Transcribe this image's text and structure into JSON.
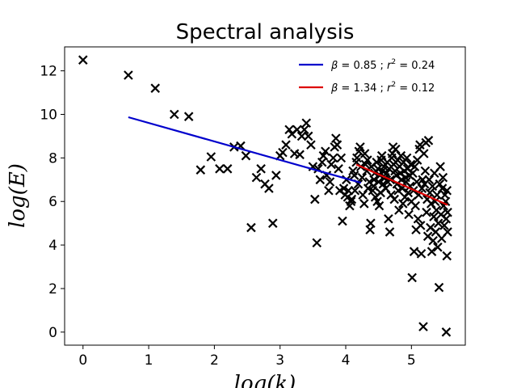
{
  "chart_data": {
    "type": "scatter",
    "title": "Spectral analysis",
    "xlabel": "log(k)",
    "ylabel": "log(E)",
    "xlim": [
      -0.28,
      5.82
    ],
    "ylim": [
      -0.6,
      13.1
    ],
    "xticks": [
      0,
      1,
      2,
      3,
      4,
      5
    ],
    "yticks": [
      0,
      2,
      4,
      6,
      8,
      10,
      12
    ],
    "grid": false,
    "legend_position": "top-right",
    "marker": "x",
    "points": [
      [
        0.0,
        12.5
      ],
      [
        0.69,
        11.8
      ],
      [
        1.1,
        11.2
      ],
      [
        1.39,
        10.0
      ],
      [
        1.61,
        9.9
      ],
      [
        1.79,
        7.45
      ],
      [
        1.95,
        8.05
      ],
      [
        2.08,
        7.5
      ],
      [
        2.2,
        7.5
      ],
      [
        2.3,
        8.5
      ],
      [
        2.4,
        8.55
      ],
      [
        2.48,
        8.1
      ],
      [
        2.56,
        4.8
      ],
      [
        2.64,
        7.1
      ],
      [
        2.71,
        7.5
      ],
      [
        2.77,
        6.8
      ],
      [
        2.83,
        6.6
      ],
      [
        2.89,
        5.0
      ],
      [
        2.94,
        7.2
      ],
      [
        3.0,
        8.1
      ],
      [
        3.04,
        8.25
      ],
      [
        3.09,
        8.6
      ],
      [
        3.14,
        9.3
      ],
      [
        3.18,
        9.1
      ],
      [
        3.22,
        8.2
      ],
      [
        3.26,
        9.3
      ],
      [
        3.3,
        8.15
      ],
      [
        3.33,
        9.0
      ],
      [
        3.37,
        9.3
      ],
      [
        3.4,
        9.6
      ],
      [
        3.43,
        9.0
      ],
      [
        3.47,
        8.6
      ],
      [
        3.5,
        7.6
      ],
      [
        3.53,
        6.1
      ],
      [
        3.56,
        4.1
      ],
      [
        3.58,
        7.5
      ],
      [
        3.61,
        7.0
      ],
      [
        3.64,
        7.8
      ],
      [
        3.66,
        8.1
      ],
      [
        3.69,
        8.3
      ],
      [
        3.71,
        7.2
      ],
      [
        3.74,
        6.5
      ],
      [
        3.76,
        6.9
      ],
      [
        3.78,
        7.7
      ],
      [
        3.81,
        8.0
      ],
      [
        3.83,
        8.5
      ],
      [
        3.85,
        8.9
      ],
      [
        3.87,
        8.6
      ],
      [
        3.89,
        7.5
      ],
      [
        3.91,
        6.5
      ],
      [
        3.93,
        8.0
      ],
      [
        3.95,
        5.1
      ],
      [
        3.97,
        6.6
      ],
      [
        3.99,
        6.3
      ],
      [
        4.01,
        7.0
      ],
      [
        4.03,
        6.2
      ],
      [
        4.04,
        6.5
      ],
      [
        4.06,
        5.8
      ],
      [
        4.08,
        6.0
      ],
      [
        4.09,
        6.1
      ],
      [
        4.11,
        7.4
      ],
      [
        4.13,
        7.2
      ],
      [
        4.14,
        6.5
      ],
      [
        4.16,
        7.8
      ],
      [
        4.17,
        8.0
      ],
      [
        4.19,
        6.8
      ],
      [
        4.2,
        8.3
      ],
      [
        4.22,
        8.5
      ],
      [
        4.23,
        7.6
      ],
      [
        4.25,
        7.1
      ],
      [
        4.26,
        6.3
      ],
      [
        4.28,
        5.9
      ],
      [
        4.29,
        8.2
      ],
      [
        4.3,
        7.7
      ],
      [
        4.32,
        7.4
      ],
      [
        4.33,
        7.9
      ],
      [
        4.34,
        6.6
      ],
      [
        4.36,
        6.9
      ],
      [
        4.37,
        4.7
      ],
      [
        4.38,
        5.0
      ],
      [
        4.39,
        7.6
      ],
      [
        4.41,
        6.5
      ],
      [
        4.42,
        6.7
      ],
      [
        4.43,
        7.0
      ],
      [
        4.44,
        7.3
      ],
      [
        4.45,
        6.2
      ],
      [
        4.47,
        7.8
      ],
      [
        4.48,
        6.0
      ],
      [
        4.49,
        7.5
      ],
      [
        4.5,
        6.9
      ],
      [
        4.51,
        5.8
      ],
      [
        4.52,
        7.2
      ],
      [
        4.53,
        6.4
      ],
      [
        4.54,
        7.9
      ],
      [
        4.55,
        8.1
      ],
      [
        4.56,
        7.4
      ],
      [
        4.57,
        6.8
      ],
      [
        4.58,
        7.6
      ],
      [
        4.6,
        7.1
      ],
      [
        4.61,
        6.6
      ],
      [
        4.62,
        7.3
      ],
      [
        4.63,
        7.8
      ],
      [
        4.64,
        6.9
      ],
      [
        4.65,
        5.2
      ],
      [
        4.66,
        7.5
      ],
      [
        4.67,
        4.6
      ],
      [
        4.68,
        7.0
      ],
      [
        4.69,
        6.3
      ],
      [
        4.7,
        8.0
      ],
      [
        4.71,
        8.2
      ],
      [
        4.72,
        8.5
      ],
      [
        4.73,
        7.7
      ],
      [
        4.74,
        6.1
      ],
      [
        4.75,
        7.4
      ],
      [
        4.76,
        8.4
      ],
      [
        4.77,
        7.2
      ],
      [
        4.78,
        6.8
      ],
      [
        4.79,
        7.9
      ],
      [
        4.8,
        6.5
      ],
      [
        4.81,
        5.6
      ],
      [
        4.82,
        7.6
      ],
      [
        4.83,
        7.3
      ],
      [
        4.84,
        8.1
      ],
      [
        4.85,
        7.0
      ],
      [
        4.86,
        6.6
      ],
      [
        4.87,
        5.9
      ],
      [
        4.88,
        7.8
      ],
      [
        4.89,
        7.4
      ],
      [
        4.9,
        6.2
      ],
      [
        4.91,
        7.1
      ],
      [
        4.92,
        6.9
      ],
      [
        4.93,
        8.0
      ],
      [
        4.94,
        7.5
      ],
      [
        4.95,
        6.4
      ],
      [
        4.96,
        5.4
      ],
      [
        4.97,
        7.2
      ],
      [
        4.98,
        6.7
      ],
      [
        4.99,
        7.7
      ],
      [
        5.0,
        6.0
      ],
      [
        5.01,
        2.5
      ],
      [
        5.02,
        7.3
      ],
      [
        5.03,
        6.5
      ],
      [
        5.04,
        3.7
      ],
      [
        5.05,
        7.6
      ],
      [
        5.06,
        5.8
      ],
      [
        5.07,
        4.7
      ],
      [
        5.08,
        6.9
      ],
      [
        5.09,
        7.9
      ],
      [
        5.1,
        5.2
      ],
      [
        5.11,
        6.3
      ],
      [
        5.12,
        8.4
      ],
      [
        5.13,
        8.6
      ],
      [
        5.14,
        4.9
      ],
      [
        5.15,
        3.6
      ],
      [
        5.16,
        6.6
      ],
      [
        5.17,
        7.0
      ],
      [
        5.18,
        0.25
      ],
      [
        5.19,
        8.2
      ],
      [
        5.2,
        6.8
      ],
      [
        5.21,
        7.4
      ],
      [
        5.22,
        8.7
      ],
      [
        5.23,
        5.5
      ],
      [
        5.24,
        6.1
      ],
      [
        5.25,
        4.4
      ],
      [
        5.26,
        8.8
      ],
      [
        5.27,
        7.0
      ],
      [
        5.28,
        6.4
      ],
      [
        5.29,
        4.8
      ],
      [
        5.3,
        5.9
      ],
      [
        5.31,
        3.7
      ],
      [
        5.32,
        6.7
      ],
      [
        5.33,
        4.2
      ],
      [
        5.34,
        5.3
      ],
      [
        5.35,
        7.3
      ],
      [
        5.36,
        6.0
      ],
      [
        5.37,
        4.6
      ],
      [
        5.38,
        5.6
      ],
      [
        5.39,
        6.3
      ],
      [
        5.4,
        3.9
      ],
      [
        5.41,
        5.0
      ],
      [
        5.42,
        2.05
      ],
      [
        5.43,
        6.8
      ],
      [
        5.44,
        7.6
      ],
      [
        5.45,
        5.4
      ],
      [
        5.46,
        4.3
      ],
      [
        5.47,
        6.6
      ],
      [
        5.48,
        7.1
      ],
      [
        5.49,
        5.8
      ],
      [
        5.5,
        4.9
      ],
      [
        5.51,
        6.3
      ],
      [
        5.52,
        6.0
      ],
      [
        5.53,
        5.2
      ],
      [
        5.53,
        0.0
      ],
      [
        5.54,
        3.5
      ],
      [
        5.54,
        6.5
      ],
      [
        5.55,
        4.6
      ],
      [
        5.55,
        5.5
      ]
    ],
    "fits": [
      {
        "name": "β = 0.85 ; r² = 0.24",
        "beta": "0.85",
        "r2": "0.24",
        "color": "#0000cc",
        "x": [
          0.69,
          4.23
        ],
        "y": [
          9.87,
          6.86
        ]
      },
      {
        "name": "β = 1.34 ; r² = 0.12",
        "beta": "1.34",
        "r2": "0.12",
        "color": "#dd0000",
        "x": [
          4.16,
          5.55
        ],
        "y": [
          7.7,
          5.84
        ]
      }
    ]
  }
}
